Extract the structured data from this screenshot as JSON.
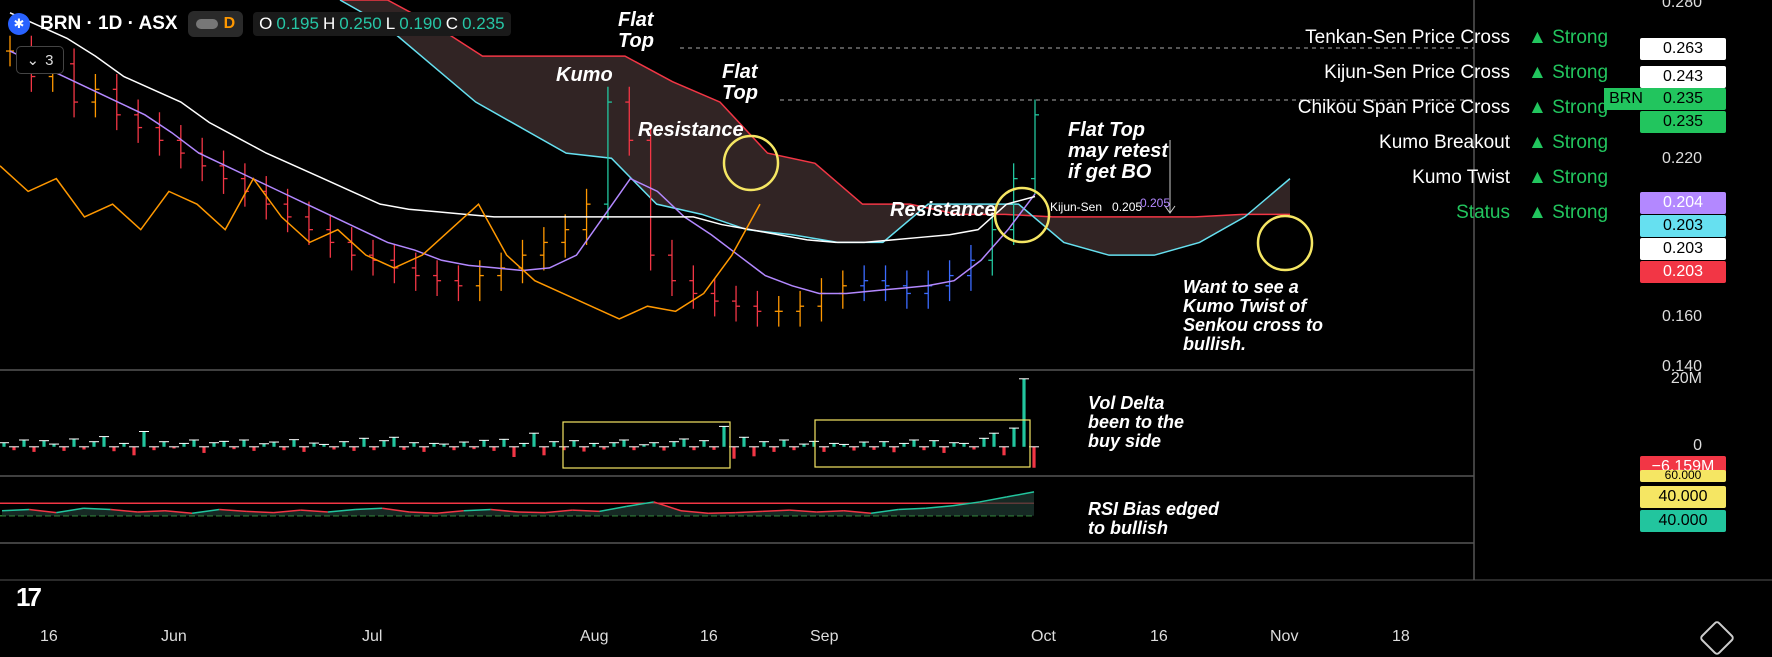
{
  "header": {
    "symbol": "BRN · 1D · ASX",
    "interval_badge": "D",
    "ohlc": [
      {
        "k": "O",
        "v": "0.195"
      },
      {
        "k": "H",
        "v": "0.250"
      },
      {
        "k": "L",
        "v": "0.190"
      },
      {
        "k": "C",
        "v": "0.235"
      }
    ],
    "indicator_count": "3"
  },
  "signals": [
    {
      "name": "Tenkan-Sen Price Cross",
      "strength": "▲ Strong"
    },
    {
      "name": "Kijun-Sen Price Cross",
      "strength": "▲ Strong"
    },
    {
      "name": "Chikou Span Price Cross",
      "strength": "▲ Strong"
    },
    {
      "name": "Kumo Breakout",
      "strength": "▲ Strong"
    },
    {
      "name": "Kumo Twist",
      "strength": "▲ Strong"
    },
    {
      "name": "Status",
      "strength": "▲ Strong"
    }
  ],
  "price_axis": {
    "ticks": [
      "0.280",
      "0.220",
      "0.160",
      "0.140"
    ],
    "labels": [
      {
        "text": "0.263",
        "bg": "#ffffff",
        "fg": "#000000"
      },
      {
        "text": "0.243",
        "bg": "#ffffff",
        "fg": "#000000"
      },
      {
        "text": "0.235",
        "bg": "#22c55e",
        "fg": "#000000"
      },
      {
        "text": "0.235",
        "bg": "#22c55e",
        "fg": "#000000"
      },
      {
        "text": "0.204",
        "bg": "#b388ff",
        "fg": "#ffffff"
      },
      {
        "text": "0.203",
        "bg": "#66e0f0",
        "fg": "#000000"
      },
      {
        "text": "0.203",
        "bg": "#ffffff",
        "fg": "#000000"
      },
      {
        "text": "0.203",
        "bg": "#f23645",
        "fg": "#ffffff"
      }
    ],
    "ticker_tag": "BRN"
  },
  "volume_axis": {
    "ticks": [
      "20M",
      "0"
    ],
    "label": {
      "text": "−6.159M",
      "bg": "#f23645",
      "fg": "#ffffff"
    }
  },
  "rsi_axis": {
    "labels": [
      {
        "text": "60.000",
        "bg": "#f5e663",
        "fg": "#000000"
      },
      {
        "text": "40.000",
        "bg": "#f5e663",
        "fg": "#000000"
      },
      {
        "text": "40.000",
        "bg": "#22c59e",
        "fg": "#000000"
      }
    ]
  },
  "time_axis": [
    "16",
    "Jun",
    "Jul",
    "Aug",
    "16",
    "Sep",
    "Oct",
    "16",
    "Nov",
    "18"
  ],
  "annotations": {
    "flat_top_1": "Flat\nTop",
    "flat_top_2": "Flat\nTop",
    "kumo": "Kumo",
    "resistance_1": "Resistance",
    "resistance_2": "Resistance",
    "retest": "Flat Top\nmay retest\nif get BO",
    "twist": "Want to see a\nKumo Twist of\nSenkou cross to\nbullish.",
    "vol_delta": "Vol Delta\nbeen to the\nbuy side",
    "rsi": "RSI Bias edged\nto bullish",
    "kijun_label": "Kijun-Sen",
    "kijun_value": "0.205",
    "kijun_ghost_value": "0.205"
  },
  "colors": {
    "up": "#22c59e",
    "down": "#f23645",
    "tenkan": "#b388ff",
    "kijun": "#ffffff",
    "chikou": "#ff9800",
    "senkou_a": "#66e0f0",
    "senkou_b": "#f23645",
    "cloud": "#3a2a2a",
    "highlight": "#f5e663"
  },
  "chart_data": [
    {
      "type": "line",
      "title": "BRN · 1D · ASX",
      "y_range": [
        0.135,
        0.28
      ],
      "x_labels": [
        "16",
        "Jun",
        "Jul",
        "Aug",
        "16",
        "Sep",
        "Oct",
        "16",
        "Nov",
        "18"
      ],
      "series": [
        {
          "values_close": [
            0.26,
            0.25,
            0.255,
            0.24,
            0.245,
            0.235,
            0.23,
            0.225,
            0.22,
            0.215,
            0.21,
            0.205,
            0.2,
            0.195,
            0.19,
            0.185,
            0.18,
            0.178,
            0.175,
            0.172,
            0.17,
            0.168,
            0.172,
            0.175,
            0.18,
            0.185,
            0.19,
            0.2,
            0.24,
            0.225,
            0.18,
            0.17,
            0.165,
            0.162,
            0.16,
            0.158,
            0.158,
            0.16,
            0.165,
            0.168,
            0.17,
            0.168,
            0.165,
            0.168,
            0.172,
            0.178,
            0.19,
            0.21,
            0.235
          ]
        },
        {
          "values_tenkan": [
            0.26,
            0.255,
            0.25,
            0.245,
            0.24,
            0.235,
            0.228,
            0.22,
            0.215,
            0.21,
            0.205,
            0.2,
            0.195,
            0.19,
            0.185,
            0.182,
            0.178,
            0.176,
            0.175,
            0.174,
            0.175,
            0.18,
            0.195,
            0.21,
            0.205,
            0.195,
            0.188,
            0.18,
            0.172,
            0.168,
            0.165,
            0.165,
            0.166,
            0.167,
            0.168,
            0.17,
            0.178,
            0.19,
            0.204
          ]
        },
        {
          "values_kijun": [
            0.275,
            0.27,
            0.265,
            0.258,
            0.25,
            0.245,
            0.24,
            0.232,
            0.226,
            0.22,
            0.215,
            0.21,
            0.205,
            0.2,
            0.198,
            0.197,
            0.196,
            0.195,
            0.195,
            0.195,
            0.195,
            0.195,
            0.195,
            0.195,
            0.195,
            0.192,
            0.19,
            0.188,
            0.186,
            0.185,
            0.185,
            0.186,
            0.187,
            0.188,
            0.19,
            0.2,
            0.203
          ]
        },
        {
          "values_chikou": [
            0.215,
            0.205,
            0.21,
            0.195,
            0.2,
            0.19,
            0.205,
            0.2,
            0.19,
            0.21,
            0.195,
            0.185,
            0.19,
            0.18,
            0.175,
            0.18,
            0.19,
            0.2,
            0.18,
            0.17,
            0.165,
            0.16,
            0.155,
            0.16,
            0.158,
            0.165,
            0.18,
            0.2
          ]
        },
        {
          "values_senkou_b": [
            0.28,
            0.28,
            0.27,
            0.258,
            0.258,
            0.258,
            0.258,
            0.248,
            0.24,
            0.22,
            0.216,
            0.2,
            0.2,
            0.196,
            0.196,
            0.195,
            0.195,
            0.195,
            0.195,
            0.196,
            0.196
          ]
        },
        {
          "values_senkou_a": [
            0.28,
            0.27,
            0.255,
            0.24,
            0.23,
            0.22,
            0.218,
            0.2,
            0.196,
            0.19,
            0.188,
            0.185,
            0.185,
            0.2,
            0.2,
            0.2,
            0.185,
            0.18,
            0.18,
            0.185,
            0.195,
            0.21
          ]
        }
      ]
    },
    {
      "type": "bar",
      "title": "Vol Delta",
      "y_range": [
        -8,
        22
      ],
      "values": [
        1.2,
        -1.0,
        2.0,
        -1.5,
        1.8,
        0.8,
        -1.2,
        2.3,
        -0.8,
        1.5,
        3.0,
        -1.3,
        1.0,
        -2.5,
        4.5,
        -1.0,
        1.5,
        -0.5,
        1.0,
        2.0,
        -1.8,
        1.2,
        1.6,
        -0.7,
        2.0,
        -1.2,
        0.9,
        1.4,
        -1.0,
        2.1,
        -1.5,
        1.1,
        0.7,
        -0.8,
        1.5,
        -1.2,
        2.5,
        -1.0,
        1.8,
        2.8,
        -0.9,
        1.2,
        -1.5,
        1.0,
        0.8,
        -1.0,
        1.4,
        -0.7,
        1.9,
        -1.2,
        2.2,
        -3.0,
        1.0,
        4.0,
        -2.5,
        1.5,
        -1.0,
        1.8,
        -1.4,
        1.0,
        -0.8,
        1.2,
        2.0,
        -1.0,
        0.6,
        1.2,
        -1.1,
        1.5,
        2.3,
        -1.0,
        1.8,
        -0.9,
        6.0,
        -3.5,
        2.8,
        -2.8,
        1.5,
        -1.5,
        2.0,
        -1.0,
        0.8,
        1.6,
        -1.5,
        1.0,
        0.7,
        -1.1,
        1.4,
        -0.9,
        1.5,
        -1.6,
        1.0,
        2.0,
        -1.0,
        1.8,
        -1.8,
        1.2,
        1.0,
        -0.8,
        2.5,
        4.0,
        -2.5,
        5.5,
        20.0,
        -6.159
      ]
    },
    {
      "type": "line",
      "title": "RSI Bias",
      "y_range": [
        0,
        100
      ],
      "series": [
        {
          "name": "bias",
          "values": [
            48,
            50,
            45,
            52,
            50,
            46,
            48,
            44,
            50,
            47,
            45,
            49,
            46,
            50,
            52,
            46,
            44,
            48,
            50,
            46,
            45,
            49,
            47,
            55,
            62,
            48,
            44,
            45,
            47,
            49,
            46,
            48,
            44,
            50,
            52,
            56,
            62,
            70,
            78
          ]
        }
      ]
    }
  ]
}
